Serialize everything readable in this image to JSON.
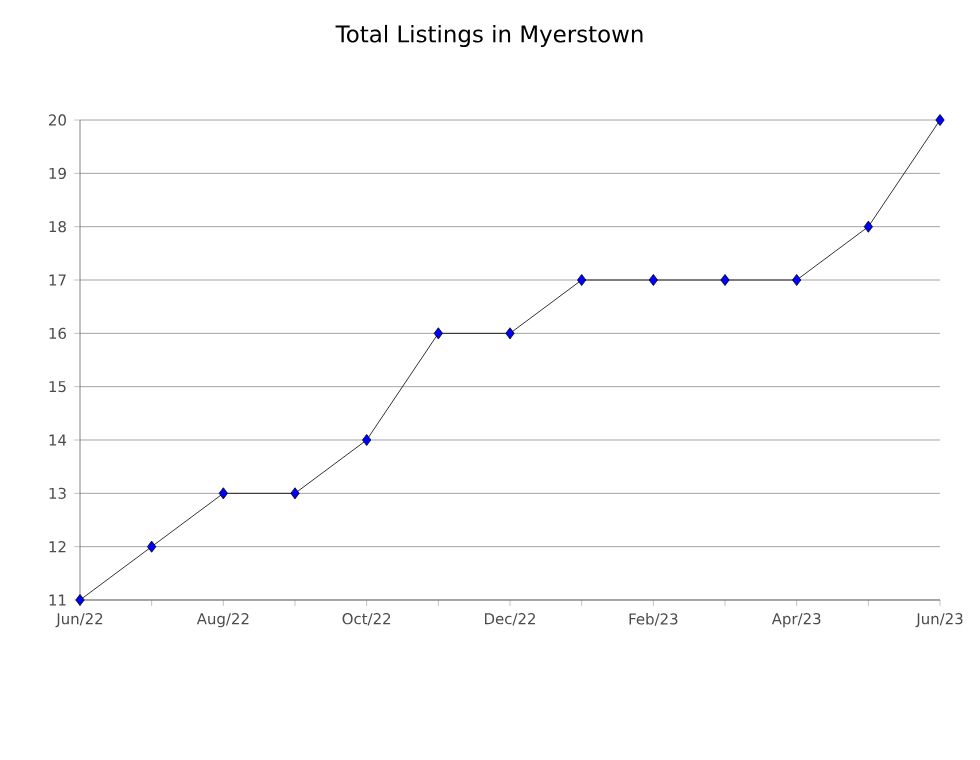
{
  "chart_data": {
    "type": "line",
    "title": "Total Listings in Myerstown",
    "categories": [
      "Jun/22",
      null,
      "Aug/22",
      null,
      "Oct/22",
      null,
      "Dec/22",
      null,
      "Feb/23",
      null,
      "Apr/23",
      null,
      "Jun/23"
    ],
    "series": [
      {
        "color": "#0000ff",
        "values": [
          11,
          12,
          13,
          13,
          14,
          16,
          16,
          17,
          17,
          17,
          17,
          18,
          20
        ]
      }
    ],
    "ylim": [
      11,
      20
    ],
    "yticks": [
      11,
      12,
      13,
      14,
      15,
      16,
      17,
      18,
      19,
      20
    ],
    "grid": "y",
    "marker": "diamond",
    "line_style": "solid"
  }
}
